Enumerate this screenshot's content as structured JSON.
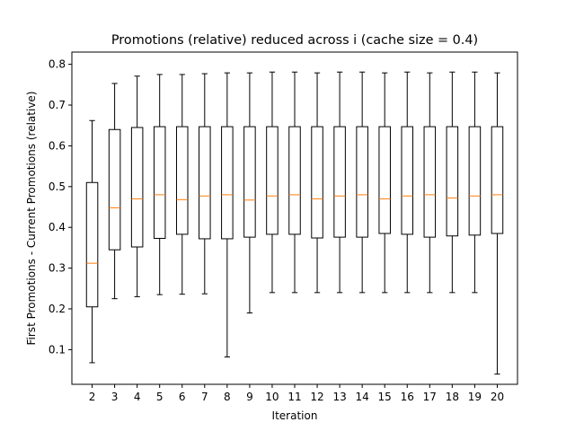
{
  "chart_data": {
    "type": "box",
    "title": "Promotions (relative) reduced across i (cache size = 0.4)",
    "xlabel": "Iteration",
    "ylabel": "First Promotions - Current Promotions (relative)",
    "ylim": [
      0.015,
      0.83
    ],
    "yticks": [
      0.1,
      0.2,
      0.3,
      0.4,
      0.5,
      0.6,
      0.7,
      0.8
    ],
    "categories": [
      "2",
      "3",
      "4",
      "5",
      "6",
      "7",
      "8",
      "9",
      "10",
      "11",
      "12",
      "13",
      "14",
      "15",
      "16",
      "17",
      "18",
      "19",
      "20"
    ],
    "boxes": [
      {
        "x": "2",
        "whislo": 0.068,
        "q1": 0.205,
        "med": 0.312,
        "q3": 0.51,
        "whishi": 0.662
      },
      {
        "x": "3",
        "whislo": 0.225,
        "q1": 0.345,
        "med": 0.448,
        "q3": 0.64,
        "whishi": 0.753
      },
      {
        "x": "4",
        "whislo": 0.23,
        "q1": 0.352,
        "med": 0.47,
        "q3": 0.645,
        "whishi": 0.771
      },
      {
        "x": "5",
        "whislo": 0.235,
        "q1": 0.373,
        "med": 0.48,
        "q3": 0.647,
        "whishi": 0.775
      },
      {
        "x": "6",
        "whislo": 0.236,
        "q1": 0.383,
        "med": 0.468,
        "q3": 0.647,
        "whishi": 0.775
      },
      {
        "x": "7",
        "whislo": 0.237,
        "q1": 0.372,
        "med": 0.477,
        "q3": 0.647,
        "whishi": 0.777
      },
      {
        "x": "8",
        "whislo": 0.082,
        "q1": 0.372,
        "med": 0.48,
        "q3": 0.647,
        "whishi": 0.779
      },
      {
        "x": "9",
        "whislo": 0.19,
        "q1": 0.376,
        "med": 0.467,
        "q3": 0.647,
        "whishi": 0.779
      },
      {
        "x": "10",
        "whislo": 0.24,
        "q1": 0.383,
        "med": 0.477,
        "q3": 0.647,
        "whishi": 0.781
      },
      {
        "x": "11",
        "whislo": 0.24,
        "q1": 0.383,
        "med": 0.48,
        "q3": 0.647,
        "whishi": 0.781
      },
      {
        "x": "12",
        "whislo": 0.24,
        "q1": 0.374,
        "med": 0.47,
        "q3": 0.647,
        "whishi": 0.779
      },
      {
        "x": "13",
        "whislo": 0.24,
        "q1": 0.376,
        "med": 0.477,
        "q3": 0.647,
        "whishi": 0.781
      },
      {
        "x": "14",
        "whislo": 0.24,
        "q1": 0.376,
        "med": 0.48,
        "q3": 0.647,
        "whishi": 0.781
      },
      {
        "x": "15",
        "whislo": 0.24,
        "q1": 0.385,
        "med": 0.47,
        "q3": 0.647,
        "whishi": 0.779
      },
      {
        "x": "16",
        "whislo": 0.24,
        "q1": 0.383,
        "med": 0.477,
        "q3": 0.647,
        "whishi": 0.781
      },
      {
        "x": "17",
        "whislo": 0.24,
        "q1": 0.376,
        "med": 0.48,
        "q3": 0.647,
        "whishi": 0.779
      },
      {
        "x": "18",
        "whislo": 0.24,
        "q1": 0.379,
        "med": 0.472,
        "q3": 0.647,
        "whishi": 0.781
      },
      {
        "x": "19",
        "whislo": 0.24,
        "q1": 0.381,
        "med": 0.477,
        "q3": 0.647,
        "whishi": 0.781
      },
      {
        "x": "20",
        "whislo": 0.04,
        "q1": 0.385,
        "med": 0.48,
        "q3": 0.647,
        "whishi": 0.779
      }
    ],
    "grid": false,
    "legend": "none",
    "colors": {
      "box": "#000000",
      "median": "#ff7f0e"
    }
  }
}
